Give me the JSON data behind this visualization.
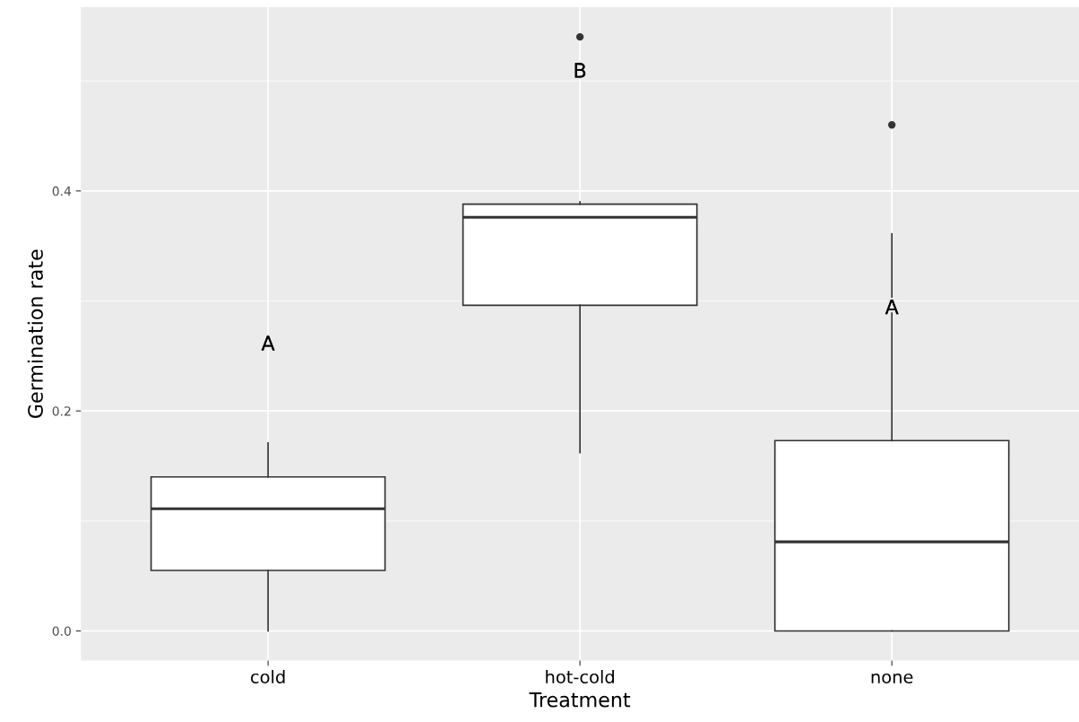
{
  "chart_data": {
    "type": "box",
    "xlabel": "Treatment",
    "ylabel": "Germination rate",
    "categories": [
      "cold",
      "hot-cold",
      "none"
    ],
    "boxes": [
      {
        "low": 0.0,
        "q1": 0.055,
        "median": 0.111,
        "q3": 0.14,
        "high": 0.171
      },
      {
        "low": 0.162,
        "q1": 0.296,
        "median": 0.376,
        "q3": 0.388,
        "high": 0.39,
        "outliers": [
          0.54
        ]
      },
      {
        "low": 0.0,
        "q1": 0.0,
        "median": 0.081,
        "q3": 0.173,
        "high": 0.361,
        "outliers": [
          0.46
        ]
      }
    ],
    "ylim": [
      -0.027,
      0.567
    ],
    "yticks": [
      {
        "value": 0,
        "label": "0.0"
      },
      {
        "value": 0.2,
        "label": "0.2"
      },
      {
        "value": 0.4,
        "label": "0.4"
      }
    ],
    "grid": true,
    "annotations": [
      "A",
      "B",
      "A"
    ]
  }
}
